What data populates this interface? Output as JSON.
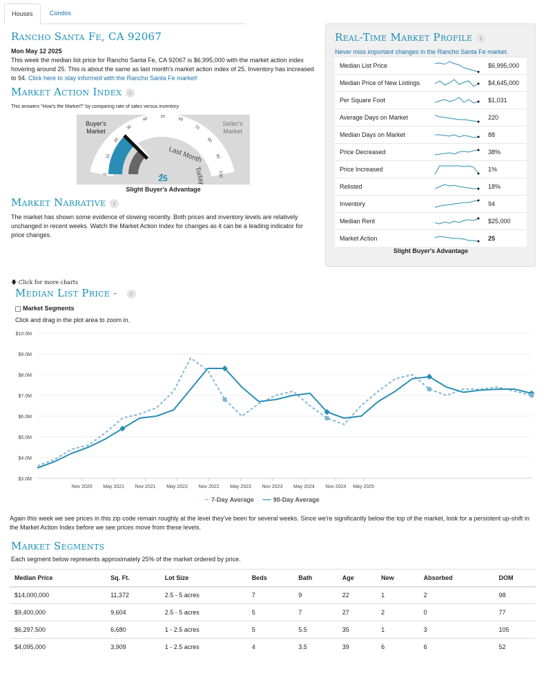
{
  "tabs": [
    {
      "label": "Houses"
    },
    {
      "label": "Condos"
    }
  ],
  "header": {
    "title": "Rancho Santa Fe, CA 92067",
    "date": "Mon May 12 2025",
    "summary": "This week the median list price for Rancho Santa Fe, CA 92067 is $6,995,000 with the market action index hovering around 25. This is about the same as last month's market action index of 25. Inventory has increased to 94.",
    "summary_link": "Click here to stay informed with the Rancho Santa Fe market!"
  },
  "market_action": {
    "title": "Market Action Index",
    "desc": "This answers \"How's the Market?\" by comparing rate of sales versus inventory.",
    "buyers_label_1": "Buyer's",
    "buyers_label_2": "Market",
    "sellers_label_1": "Seller's",
    "sellers_label_2": "Market",
    "value": "25",
    "caption": "Slight Buyer's Advantage",
    "last_month_label": "Last Month",
    "today_label": "Today",
    "index_value": 25,
    "last_month_value": 25,
    "ticks": [
      "0",
      "10",
      "20",
      "30",
      "40",
      "50",
      "60",
      "70",
      "80",
      "90",
      "100"
    ]
  },
  "narrative": {
    "title": "Market Narrative",
    "text": "The market has shown some evidence of slowing recently. Both prices and inventory levels are relatively unchanged in recent weeks. Watch the Market Action Index for changes as it can be a leading indicator for price changes."
  },
  "profile": {
    "title": "Real-Time Market Profile",
    "subtitle": "Never miss important changes in the Rancho Santa Fe market.",
    "rows": [
      {
        "label": "Median List Price",
        "value": "$6,995,000"
      },
      {
        "label": "Median Price of New Listings",
        "value": "$4,645,000"
      },
      {
        "label": "Per Square Foot",
        "value": "$1,031"
      },
      {
        "label": "Average Days on Market",
        "value": "220"
      },
      {
        "label": "Median Days on Market",
        "value": "88"
      },
      {
        "label": "Price Decreased",
        "value": "38%"
      },
      {
        "label": "Price Increased",
        "value": "1%"
      },
      {
        "label": "Relisted",
        "value": "18%"
      },
      {
        "label": "Inventory",
        "value": "94"
      },
      {
        "label": "Median Rent",
        "value": "$25,000"
      },
      {
        "label": "Market Action",
        "value": "25"
      }
    ],
    "footer": "Slight Buyer's Advantage"
  },
  "charts_hint": "Click for more charts",
  "median_chart": {
    "title": "Median List Price -",
    "segments_label": "Market Segments",
    "instructions": "Click and drag in the plot area to zoom in.",
    "legend_7": "7-Day Average",
    "legend_90": "90-Day Average",
    "colors": {
      "line": "#2a8db5",
      "dashed": "#7fb8d4"
    }
  },
  "chart_data": {
    "type": "line",
    "title": "Median List Price -",
    "ylim": [
      3000000,
      10000000
    ],
    "yticks": [
      "$3.0M",
      "$4.0M",
      "$5.0M",
      "$6.0M",
      "$7.0M",
      "$8.0M",
      "$9.0M",
      "$10.0M"
    ],
    "xticks": [
      "Nov 2020",
      "May 2021",
      "Nov 2021",
      "May 2022",
      "Nov 2022",
      "May 2023",
      "Nov 2023",
      "May 2024",
      "Nov 2024",
      "May 2025"
    ],
    "x": [
      "2020-06",
      "2020-08",
      "2020-10",
      "2020-12",
      "2021-02",
      "2021-04",
      "2021-06",
      "2021-08",
      "2021-10",
      "2021-12",
      "2022-02",
      "2022-04",
      "2022-06",
      "2022-08",
      "2022-10",
      "2022-12",
      "2023-02",
      "2023-04",
      "2023-06",
      "2023-08",
      "2023-10",
      "2023-12",
      "2024-02",
      "2024-04",
      "2024-06",
      "2024-08",
      "2024-10",
      "2024-12",
      "2025-02",
      "2025-05"
    ],
    "series": [
      {
        "name": "90-Day Average",
        "values": [
          3500000,
          3800000,
          4200000,
          4500000,
          4900000,
          5400000,
          5900000,
          6000000,
          6300000,
          7300000,
          8300000,
          8300000,
          7400000,
          6700000,
          6800000,
          7000000,
          7100000,
          6200000,
          5900000,
          6000000,
          6700000,
          7200000,
          7800000,
          7900000,
          7400000,
          7150000,
          7250000,
          7300000,
          7300000,
          7100000
        ]
      },
      {
        "name": "7-Day Average",
        "values": [
          3600000,
          3900000,
          4400000,
          4600000,
          5200000,
          5900000,
          6100000,
          6400000,
          7200000,
          8800000,
          8200000,
          6800000,
          6000000,
          6600000,
          7000000,
          7200000,
          6500000,
          5900000,
          5600000,
          6500000,
          7200000,
          7800000,
          8000000,
          7300000,
          7000000,
          7300000,
          7300000,
          7400000,
          7200000,
          7000000
        ]
      }
    ],
    "legend": "bottom"
  },
  "after_chart_text": "Again this week we see prices in this zip code remain roughly at the level they've been for several weeks. Since we're significantly below the top of the market, look for a persistent up-shift in the Market Action Index before we see prices move from these levels.",
  "segments": {
    "title": "Market Segments",
    "desc": "Each segment below represents approximately 25% of the market ordered by price.",
    "headers": [
      "Median Price",
      "Sq. Ft.",
      "Lot Size",
      "Beds",
      "Bath",
      "Age",
      "New",
      "Absorbed",
      "DOM"
    ],
    "rows": [
      [
        "$14,000,000",
        "11,372",
        "2.5 - 5 acres",
        "7",
        "9",
        "22",
        "1",
        "2",
        "98"
      ],
      [
        "$9,400,000",
        "9,604",
        "2.5 - 5 acres",
        "5",
        "7",
        "27",
        "2",
        "0",
        "77"
      ],
      [
        "$6,297,500",
        "6,680",
        "1 - 2.5 acres",
        "5",
        "5.5",
        "35",
        "1",
        "3",
        "105"
      ],
      [
        "$4,095,000",
        "3,909",
        "1 - 2.5 acres",
        "4",
        "3.5",
        "39",
        "6",
        "6",
        "52"
      ]
    ]
  }
}
